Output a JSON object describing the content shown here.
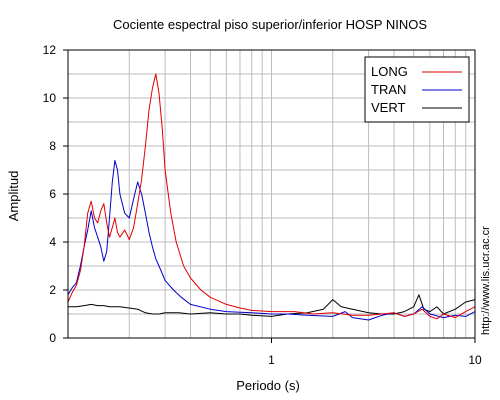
{
  "chart_data": {
    "type": "line",
    "title": "Cociente espectral piso superior/inferior  HOSP NINOS",
    "xlabel": "Periodo (s)",
    "ylabel": "Amplitud",
    "x_scale": "log",
    "xlim": [
      0.1,
      10
    ],
    "ylim": [
      0,
      12
    ],
    "x_tick_labels": [
      "1",
      "10"
    ],
    "y_tick_labels": [
      "0",
      "2",
      "4",
      "6",
      "8",
      "10",
      "12"
    ],
    "grid": true,
    "legend_position": "top-right",
    "side_text": "http://www.lis.ucr.ac.cr",
    "series": [
      {
        "name": "LONG",
        "color": "#e00000",
        "points": [
          [
            0.1,
            1.5
          ],
          [
            0.105,
            1.9
          ],
          [
            0.11,
            2.2
          ],
          [
            0.115,
            2.8
          ],
          [
            0.12,
            3.8
          ],
          [
            0.125,
            5.2
          ],
          [
            0.13,
            5.7
          ],
          [
            0.135,
            5.0
          ],
          [
            0.14,
            4.8
          ],
          [
            0.145,
            5.3
          ],
          [
            0.15,
            5.6
          ],
          [
            0.155,
            4.8
          ],
          [
            0.16,
            4.2
          ],
          [
            0.165,
            4.6
          ],
          [
            0.17,
            5.0
          ],
          [
            0.175,
            4.4
          ],
          [
            0.18,
            4.2
          ],
          [
            0.19,
            4.5
          ],
          [
            0.2,
            4.1
          ],
          [
            0.21,
            4.6
          ],
          [
            0.22,
            5.6
          ],
          [
            0.23,
            6.6
          ],
          [
            0.24,
            8.0
          ],
          [
            0.25,
            9.5
          ],
          [
            0.26,
            10.4
          ],
          [
            0.27,
            11.0
          ],
          [
            0.28,
            10.2
          ],
          [
            0.29,
            8.8
          ],
          [
            0.3,
            7.0
          ],
          [
            0.32,
            5.2
          ],
          [
            0.34,
            4.0
          ],
          [
            0.37,
            3.0
          ],
          [
            0.4,
            2.5
          ],
          [
            0.45,
            2.0
          ],
          [
            0.5,
            1.7
          ],
          [
            0.6,
            1.4
          ],
          [
            0.7,
            1.25
          ],
          [
            0.8,
            1.15
          ],
          [
            1.0,
            1.1
          ],
          [
            1.3,
            1.1
          ],
          [
            1.6,
            1.0
          ],
          [
            2.0,
            1.05
          ],
          [
            2.5,
            0.95
          ],
          [
            3.0,
            0.95
          ],
          [
            3.5,
            1.0
          ],
          [
            4.0,
            1.05
          ],
          [
            4.5,
            0.9
          ],
          [
            5.0,
            1.0
          ],
          [
            5.5,
            1.2
          ],
          [
            6.0,
            0.9
          ],
          [
            6.5,
            0.8
          ],
          [
            7.0,
            1.0
          ],
          [
            8.0,
            0.85
          ],
          [
            9.0,
            1.1
          ],
          [
            10.0,
            1.3
          ]
        ]
      },
      {
        "name": "TRAN",
        "color": "#0000cc",
        "points": [
          [
            0.1,
            1.8
          ],
          [
            0.105,
            2.1
          ],
          [
            0.11,
            2.3
          ],
          [
            0.115,
            3.0
          ],
          [
            0.12,
            3.8
          ],
          [
            0.125,
            4.5
          ],
          [
            0.13,
            5.3
          ],
          [
            0.135,
            4.6
          ],
          [
            0.14,
            4.2
          ],
          [
            0.145,
            3.8
          ],
          [
            0.15,
            3.2
          ],
          [
            0.155,
            3.6
          ],
          [
            0.16,
            5.0
          ],
          [
            0.165,
            6.5
          ],
          [
            0.17,
            7.4
          ],
          [
            0.175,
            7.0
          ],
          [
            0.18,
            6.0
          ],
          [
            0.19,
            5.2
          ],
          [
            0.2,
            5.0
          ],
          [
            0.21,
            5.8
          ],
          [
            0.22,
            6.5
          ],
          [
            0.23,
            6.0
          ],
          [
            0.24,
            5.2
          ],
          [
            0.25,
            4.4
          ],
          [
            0.26,
            3.8
          ],
          [
            0.27,
            3.3
          ],
          [
            0.28,
            3.0
          ],
          [
            0.3,
            2.4
          ],
          [
            0.33,
            2.0
          ],
          [
            0.36,
            1.7
          ],
          [
            0.4,
            1.4
          ],
          [
            0.5,
            1.2
          ],
          [
            0.6,
            1.1
          ],
          [
            0.8,
            1.05
          ],
          [
            1.0,
            1.0
          ],
          [
            1.2,
            1.0
          ],
          [
            1.5,
            0.95
          ],
          [
            2.0,
            0.9
          ],
          [
            2.3,
            1.1
          ],
          [
            2.5,
            0.85
          ],
          [
            3.0,
            0.75
          ],
          [
            3.5,
            0.95
          ],
          [
            4.0,
            1.05
          ],
          [
            4.5,
            0.9
          ],
          [
            5.0,
            1.0
          ],
          [
            5.5,
            1.3
          ],
          [
            6.0,
            1.0
          ],
          [
            7.0,
            0.85
          ],
          [
            8.0,
            0.95
          ],
          [
            9.0,
            0.9
          ],
          [
            10.0,
            1.1
          ]
        ]
      },
      {
        "name": "VERT",
        "color": "#000000",
        "points": [
          [
            0.1,
            1.3
          ],
          [
            0.11,
            1.3
          ],
          [
            0.12,
            1.35
          ],
          [
            0.13,
            1.4
          ],
          [
            0.14,
            1.35
          ],
          [
            0.15,
            1.35
          ],
          [
            0.16,
            1.3
          ],
          [
            0.17,
            1.3
          ],
          [
            0.18,
            1.3
          ],
          [
            0.2,
            1.25
          ],
          [
            0.22,
            1.2
          ],
          [
            0.24,
            1.05
          ],
          [
            0.26,
            1.0
          ],
          [
            0.28,
            1.0
          ],
          [
            0.3,
            1.05
          ],
          [
            0.35,
            1.05
          ],
          [
            0.4,
            1.0
          ],
          [
            0.5,
            1.05
          ],
          [
            0.6,
            1.0
          ],
          [
            0.7,
            1.0
          ],
          [
            0.8,
            0.95
          ],
          [
            1.0,
            0.9
          ],
          [
            1.2,
            1.0
          ],
          [
            1.5,
            1.05
          ],
          [
            1.8,
            1.2
          ],
          [
            2.0,
            1.6
          ],
          [
            2.2,
            1.3
          ],
          [
            2.5,
            1.2
          ],
          [
            3.0,
            1.05
          ],
          [
            3.5,
            1.0
          ],
          [
            4.0,
            1.0
          ],
          [
            4.5,
            1.1
          ],
          [
            5.0,
            1.3
          ],
          [
            5.3,
            1.8
          ],
          [
            5.6,
            1.2
          ],
          [
            6.0,
            1.1
          ],
          [
            6.5,
            1.3
          ],
          [
            7.0,
            1.0
          ],
          [
            8.0,
            1.2
          ],
          [
            9.0,
            1.5
          ],
          [
            10.0,
            1.6
          ]
        ]
      }
    ]
  }
}
